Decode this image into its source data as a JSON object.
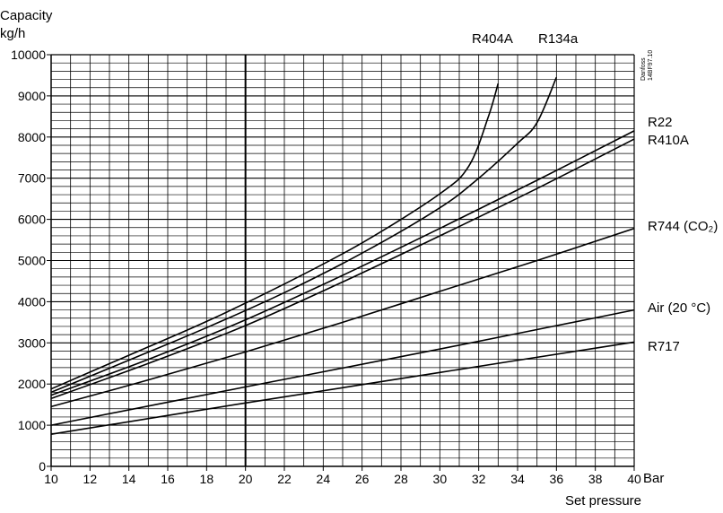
{
  "chart_data": {
    "type": "line",
    "ylabel_line1": "Capacity",
    "ylabel_line2": "kg/h",
    "xunit": "Bar",
    "xlabel": "Set pressure",
    "xlim": [
      10,
      40
    ],
    "ylim": [
      0,
      10000
    ],
    "x_ticks": [
      10,
      12,
      14,
      16,
      18,
      20,
      22,
      24,
      26,
      28,
      30,
      32,
      34,
      36,
      38,
      40
    ],
    "y_ticks": [
      0,
      1000,
      2000,
      3000,
      4000,
      5000,
      6000,
      7000,
      8000,
      9000,
      10000
    ],
    "grid": true,
    "note_line1": "Danfoss",
    "note_line2": "14BF97.10",
    "series": [
      {
        "name": "R404A",
        "points": [
          [
            10,
            1880
          ],
          [
            14,
            2700
          ],
          [
            18,
            3520
          ],
          [
            22,
            4430
          ],
          [
            26,
            5430
          ],
          [
            30,
            6620
          ],
          [
            31.5,
            7300
          ],
          [
            32.5,
            8500
          ],
          [
            33,
            9300
          ]
        ]
      },
      {
        "name": "R134a",
        "points": [
          [
            10,
            1800
          ],
          [
            14,
            2580
          ],
          [
            18,
            3370
          ],
          [
            22,
            4220
          ],
          [
            26,
            5180
          ],
          [
            30,
            6280
          ],
          [
            32,
            7000
          ],
          [
            34,
            7850
          ],
          [
            35,
            8350
          ],
          [
            36,
            9450
          ]
        ]
      },
      {
        "name": "R22",
        "points": [
          [
            10,
            1730
          ],
          [
            15,
            2600
          ],
          [
            20,
            3560
          ],
          [
            25,
            4640
          ],
          [
            30,
            5780
          ],
          [
            35,
            6950
          ],
          [
            40,
            8150
          ]
        ]
      },
      {
        "name": "R410A",
        "points": [
          [
            10,
            1650
          ],
          [
            15,
            2500
          ],
          [
            20,
            3420
          ],
          [
            25,
            4480
          ],
          [
            30,
            5600
          ],
          [
            35,
            6750
          ],
          [
            40,
            7950
          ]
        ]
      },
      {
        "name": "R744 (CO₂)",
        "points": [
          [
            10,
            1450
          ],
          [
            15,
            2100
          ],
          [
            20,
            2780
          ],
          [
            25,
            3500
          ],
          [
            30,
            4250
          ],
          [
            35,
            5000
          ],
          [
            40,
            5780
          ]
        ]
      },
      {
        "name": "Air (20 °C)",
        "points": [
          [
            10,
            1000
          ],
          [
            20,
            1930
          ],
          [
            30,
            2850
          ],
          [
            40,
            3800
          ]
        ]
      },
      {
        "name": "R717",
        "points": [
          [
            10,
            780
          ],
          [
            20,
            1540
          ],
          [
            30,
            2280
          ],
          [
            40,
            3020
          ]
        ]
      }
    ],
    "highlight_x": 20
  }
}
